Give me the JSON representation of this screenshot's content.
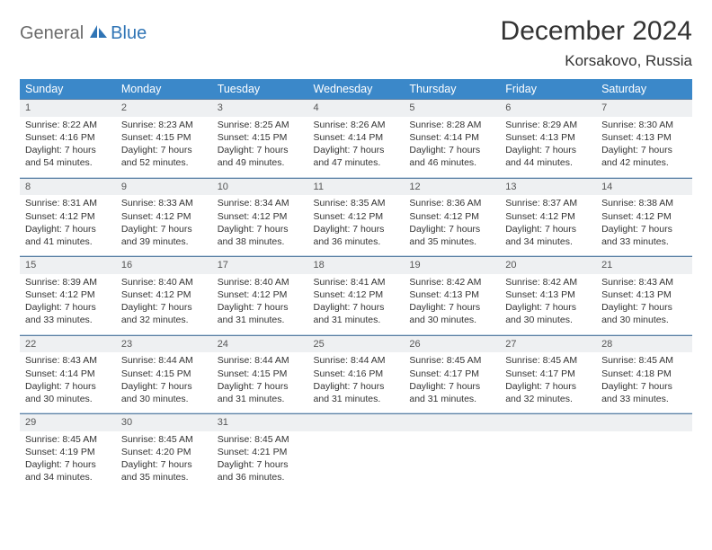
{
  "brand": {
    "part1": "General",
    "part2": "Blue"
  },
  "header": {
    "month_title": "December 2024",
    "location": "Korsakovo, Russia"
  },
  "colors": {
    "header_bg": "#3b88c9",
    "header_fg": "#ffffff",
    "daynum_bg": "#eef0f2",
    "row_border": "#5a7fa3",
    "cell_border": "#c7d7e6",
    "brand_grey": "#6b6b6b",
    "brand_blue": "#2f74b5"
  },
  "calendar": {
    "type": "table",
    "columns": [
      "Sunday",
      "Monday",
      "Tuesday",
      "Wednesday",
      "Thursday",
      "Friday",
      "Saturday"
    ],
    "weeks": [
      [
        {
          "day": "1",
          "sunrise": "Sunrise: 8:22 AM",
          "sunset": "Sunset: 4:16 PM",
          "daylight": "Daylight: 7 hours and 54 minutes."
        },
        {
          "day": "2",
          "sunrise": "Sunrise: 8:23 AM",
          "sunset": "Sunset: 4:15 PM",
          "daylight": "Daylight: 7 hours and 52 minutes."
        },
        {
          "day": "3",
          "sunrise": "Sunrise: 8:25 AM",
          "sunset": "Sunset: 4:15 PM",
          "daylight": "Daylight: 7 hours and 49 minutes."
        },
        {
          "day": "4",
          "sunrise": "Sunrise: 8:26 AM",
          "sunset": "Sunset: 4:14 PM",
          "daylight": "Daylight: 7 hours and 47 minutes."
        },
        {
          "day": "5",
          "sunrise": "Sunrise: 8:28 AM",
          "sunset": "Sunset: 4:14 PM",
          "daylight": "Daylight: 7 hours and 46 minutes."
        },
        {
          "day": "6",
          "sunrise": "Sunrise: 8:29 AM",
          "sunset": "Sunset: 4:13 PM",
          "daylight": "Daylight: 7 hours and 44 minutes."
        },
        {
          "day": "7",
          "sunrise": "Sunrise: 8:30 AM",
          "sunset": "Sunset: 4:13 PM",
          "daylight": "Daylight: 7 hours and 42 minutes."
        }
      ],
      [
        {
          "day": "8",
          "sunrise": "Sunrise: 8:31 AM",
          "sunset": "Sunset: 4:12 PM",
          "daylight": "Daylight: 7 hours and 41 minutes."
        },
        {
          "day": "9",
          "sunrise": "Sunrise: 8:33 AM",
          "sunset": "Sunset: 4:12 PM",
          "daylight": "Daylight: 7 hours and 39 minutes."
        },
        {
          "day": "10",
          "sunrise": "Sunrise: 8:34 AM",
          "sunset": "Sunset: 4:12 PM",
          "daylight": "Daylight: 7 hours and 38 minutes."
        },
        {
          "day": "11",
          "sunrise": "Sunrise: 8:35 AM",
          "sunset": "Sunset: 4:12 PM",
          "daylight": "Daylight: 7 hours and 36 minutes."
        },
        {
          "day": "12",
          "sunrise": "Sunrise: 8:36 AM",
          "sunset": "Sunset: 4:12 PM",
          "daylight": "Daylight: 7 hours and 35 minutes."
        },
        {
          "day": "13",
          "sunrise": "Sunrise: 8:37 AM",
          "sunset": "Sunset: 4:12 PM",
          "daylight": "Daylight: 7 hours and 34 minutes."
        },
        {
          "day": "14",
          "sunrise": "Sunrise: 8:38 AM",
          "sunset": "Sunset: 4:12 PM",
          "daylight": "Daylight: 7 hours and 33 minutes."
        }
      ],
      [
        {
          "day": "15",
          "sunrise": "Sunrise: 8:39 AM",
          "sunset": "Sunset: 4:12 PM",
          "daylight": "Daylight: 7 hours and 33 minutes."
        },
        {
          "day": "16",
          "sunrise": "Sunrise: 8:40 AM",
          "sunset": "Sunset: 4:12 PM",
          "daylight": "Daylight: 7 hours and 32 minutes."
        },
        {
          "day": "17",
          "sunrise": "Sunrise: 8:40 AM",
          "sunset": "Sunset: 4:12 PM",
          "daylight": "Daylight: 7 hours and 31 minutes."
        },
        {
          "day": "18",
          "sunrise": "Sunrise: 8:41 AM",
          "sunset": "Sunset: 4:12 PM",
          "daylight": "Daylight: 7 hours and 31 minutes."
        },
        {
          "day": "19",
          "sunrise": "Sunrise: 8:42 AM",
          "sunset": "Sunset: 4:13 PM",
          "daylight": "Daylight: 7 hours and 30 minutes."
        },
        {
          "day": "20",
          "sunrise": "Sunrise: 8:42 AM",
          "sunset": "Sunset: 4:13 PM",
          "daylight": "Daylight: 7 hours and 30 minutes."
        },
        {
          "day": "21",
          "sunrise": "Sunrise: 8:43 AM",
          "sunset": "Sunset: 4:13 PM",
          "daylight": "Daylight: 7 hours and 30 minutes."
        }
      ],
      [
        {
          "day": "22",
          "sunrise": "Sunrise: 8:43 AM",
          "sunset": "Sunset: 4:14 PM",
          "daylight": "Daylight: 7 hours and 30 minutes."
        },
        {
          "day": "23",
          "sunrise": "Sunrise: 8:44 AM",
          "sunset": "Sunset: 4:15 PM",
          "daylight": "Daylight: 7 hours and 30 minutes."
        },
        {
          "day": "24",
          "sunrise": "Sunrise: 8:44 AM",
          "sunset": "Sunset: 4:15 PM",
          "daylight": "Daylight: 7 hours and 31 minutes."
        },
        {
          "day": "25",
          "sunrise": "Sunrise: 8:44 AM",
          "sunset": "Sunset: 4:16 PM",
          "daylight": "Daylight: 7 hours and 31 minutes."
        },
        {
          "day": "26",
          "sunrise": "Sunrise: 8:45 AM",
          "sunset": "Sunset: 4:17 PM",
          "daylight": "Daylight: 7 hours and 31 minutes."
        },
        {
          "day": "27",
          "sunrise": "Sunrise: 8:45 AM",
          "sunset": "Sunset: 4:17 PM",
          "daylight": "Daylight: 7 hours and 32 minutes."
        },
        {
          "day": "28",
          "sunrise": "Sunrise: 8:45 AM",
          "sunset": "Sunset: 4:18 PM",
          "daylight": "Daylight: 7 hours and 33 minutes."
        }
      ],
      [
        {
          "day": "29",
          "sunrise": "Sunrise: 8:45 AM",
          "sunset": "Sunset: 4:19 PM",
          "daylight": "Daylight: 7 hours and 34 minutes."
        },
        {
          "day": "30",
          "sunrise": "Sunrise: 8:45 AM",
          "sunset": "Sunset: 4:20 PM",
          "daylight": "Daylight: 7 hours and 35 minutes."
        },
        {
          "day": "31",
          "sunrise": "Sunrise: 8:45 AM",
          "sunset": "Sunset: 4:21 PM",
          "daylight": "Daylight: 7 hours and 36 minutes."
        },
        null,
        null,
        null,
        null
      ]
    ]
  }
}
